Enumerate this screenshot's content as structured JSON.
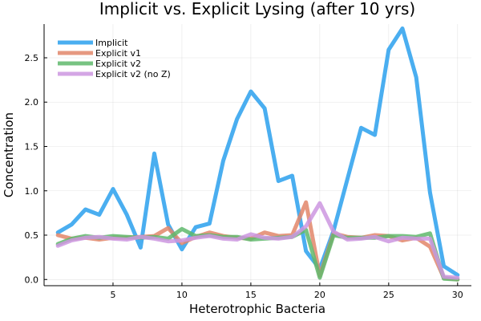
{
  "chart_data": {
    "type": "line",
    "title": "Implicit vs. Explicit Lysing (after 10 yrs)",
    "xlabel": "Heterotrophic Bacteria",
    "ylabel": "Concentration",
    "xlim": [
      0,
      31
    ],
    "ylim": [
      -0.07,
      2.88
    ],
    "xticks": [
      5,
      10,
      15,
      20,
      25,
      30
    ],
    "xtick_labels": [
      "5",
      "10",
      "15",
      "20",
      "25",
      "30"
    ],
    "yticks": [
      0.0,
      0.5,
      1.0,
      1.5,
      2.0,
      2.5
    ],
    "ytick_labels": [
      "0.0",
      "0.5",
      "1.0",
      "1.5",
      "2.0",
      "2.5"
    ],
    "grid": true,
    "legend_position": "top-left",
    "x": [
      1,
      2,
      3,
      4,
      5,
      6,
      7,
      8,
      9,
      10,
      11,
      12,
      13,
      14,
      15,
      16,
      17,
      18,
      19,
      20,
      21,
      22,
      23,
      24,
      25,
      26,
      27,
      28,
      29,
      30
    ],
    "series": [
      {
        "name": "Implicit",
        "color": "#4aaef0",
        "opacity": 1.0,
        "values": [
          0.53,
          0.62,
          0.79,
          0.73,
          1.02,
          0.73,
          0.36,
          1.42,
          0.62,
          0.34,
          0.59,
          0.63,
          1.34,
          1.81,
          2.12,
          1.93,
          1.11,
          1.17,
          0.32,
          0.12,
          0.55,
          1.13,
          1.71,
          1.63,
          2.59,
          2.83,
          2.28,
          0.98,
          0.15,
          0.05
        ]
      },
      {
        "name": "Explicit v1",
        "color": "#e2866a",
        "opacity": 0.85,
        "values": [
          0.5,
          0.46,
          0.47,
          0.45,
          0.47,
          0.47,
          0.48,
          0.49,
          0.58,
          0.41,
          0.48,
          0.53,
          0.49,
          0.47,
          0.46,
          0.53,
          0.49,
          0.5,
          0.87,
          0.04,
          0.52,
          0.48,
          0.47,
          0.5,
          0.49,
          0.44,
          0.47,
          0.37,
          0.02,
          0.0
        ]
      },
      {
        "name": "Explicit v2",
        "color": "#5fb86c",
        "opacity": 0.85,
        "values": [
          0.4,
          0.46,
          0.49,
          0.47,
          0.49,
          0.48,
          0.47,
          0.48,
          0.46,
          0.57,
          0.49,
          0.5,
          0.48,
          0.48,
          0.45,
          0.46,
          0.47,
          0.48,
          0.56,
          0.02,
          0.5,
          0.47,
          0.47,
          0.47,
          0.49,
          0.49,
          0.48,
          0.52,
          0.01,
          0.0
        ]
      },
      {
        "name": "Explicit v2 (no Z)",
        "color": "#cd96e0",
        "opacity": 0.85,
        "values": [
          0.38,
          0.44,
          0.47,
          0.48,
          0.46,
          0.45,
          0.48,
          0.46,
          0.43,
          0.44,
          0.47,
          0.49,
          0.46,
          0.45,
          0.51,
          0.47,
          0.46,
          0.48,
          0.6,
          0.86,
          0.54,
          0.45,
          0.46,
          0.48,
          0.43,
          0.47,
          0.46,
          0.46,
          0.03,
          0.02
        ]
      }
    ]
  }
}
